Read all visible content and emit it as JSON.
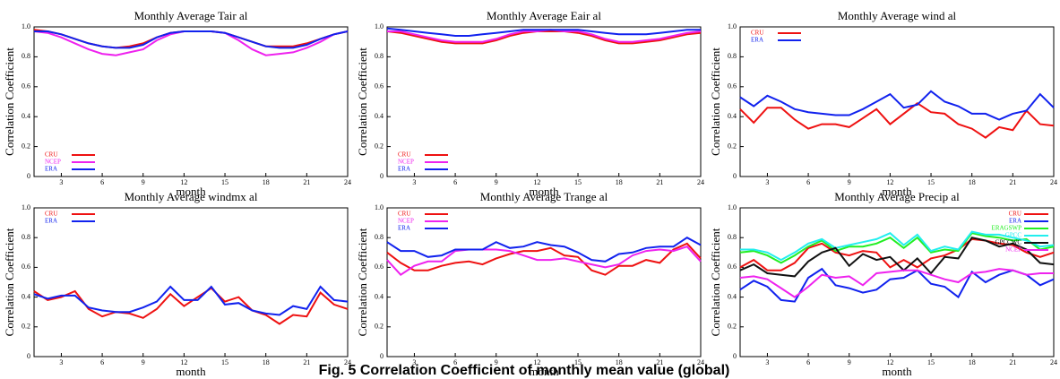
{
  "caption": "Fig. 5  Correlation Coefficient of monthly mean value (global)",
  "chart_data": [
    {
      "type": "line",
      "title": "Monthly Average Tair al",
      "xlabel": "month",
      "ylabel": "Correlation Coefficient",
      "legend": "lower left",
      "x": [
        1,
        2,
        3,
        4,
        5,
        6,
        7,
        8,
        9,
        10,
        11,
        12,
        13,
        14,
        15,
        16,
        17,
        18,
        19,
        20,
        21,
        22,
        23,
        24
      ],
      "xlim": [
        1,
        24
      ],
      "xticks": [
        3,
        6,
        9,
        12,
        15,
        18,
        21,
        24
      ],
      "ylim": [
        0,
        1
      ],
      "yticks": [
        0,
        0.2,
        0.4,
        0.6,
        0.8,
        {
          "value": 1,
          "label": "1.0"
        }
      ],
      "series": [
        {
          "name": "CRU",
          "color": "#ee1111",
          "values": [
            0.98,
            0.97,
            0.95,
            0.92,
            0.89,
            0.87,
            0.86,
            0.87,
            0.89,
            0.93,
            0.96,
            0.97,
            0.97,
            0.97,
            0.96,
            0.93,
            0.9,
            0.87,
            0.87,
            0.87,
            0.89,
            0.92,
            0.95,
            0.97
          ]
        },
        {
          "name": "NCEP",
          "color": "#ee22ee",
          "values": [
            0.97,
            0.96,
            0.93,
            0.89,
            0.85,
            0.82,
            0.81,
            0.83,
            0.85,
            0.91,
            0.95,
            0.97,
            0.97,
            0.97,
            0.96,
            0.91,
            0.85,
            0.81,
            0.82,
            0.83,
            0.86,
            0.9,
            0.95,
            0.97
          ]
        },
        {
          "name": "ERA",
          "color": "#1122ee",
          "values": [
            0.97,
            0.97,
            0.95,
            0.92,
            0.89,
            0.87,
            0.86,
            0.86,
            0.88,
            0.93,
            0.96,
            0.97,
            0.97,
            0.97,
            0.96,
            0.93,
            0.9,
            0.87,
            0.86,
            0.86,
            0.88,
            0.92,
            0.95,
            0.97
          ]
        }
      ]
    },
    {
      "type": "line",
      "title": "Monthly Average Eair al",
      "xlabel": "month",
      "ylabel": "Correlation Coefficient",
      "legend": "lower left",
      "x": [
        1,
        2,
        3,
        4,
        5,
        6,
        7,
        8,
        9,
        10,
        11,
        12,
        13,
        14,
        15,
        16,
        17,
        18,
        19,
        20,
        21,
        22,
        23,
        24
      ],
      "xlim": [
        1,
        24
      ],
      "xticks": [
        3,
        6,
        9,
        12,
        15,
        18,
        21,
        24
      ],
      "ylim": [
        0,
        1
      ],
      "yticks": [
        0,
        0.2,
        0.4,
        0.6,
        0.8,
        {
          "value": 1,
          "label": "1.0"
        }
      ],
      "series": [
        {
          "name": "CRU",
          "color": "#ee1111",
          "values": [
            0.97,
            0.96,
            0.94,
            0.92,
            0.9,
            0.89,
            0.89,
            0.89,
            0.91,
            0.94,
            0.96,
            0.97,
            0.97,
            0.97,
            0.96,
            0.94,
            0.91,
            0.89,
            0.89,
            0.9,
            0.91,
            0.93,
            0.95,
            0.96
          ]
        },
        {
          "name": "NCEP",
          "color": "#ee22ee",
          "values": [
            0.97,
            0.97,
            0.95,
            0.93,
            0.91,
            0.9,
            0.9,
            0.9,
            0.92,
            0.95,
            0.97,
            0.97,
            0.98,
            0.97,
            0.97,
            0.95,
            0.92,
            0.9,
            0.9,
            0.91,
            0.92,
            0.94,
            0.96,
            0.97
          ]
        },
        {
          "name": "ERA",
          "color": "#1122ee",
          "values": [
            0.99,
            0.98,
            0.97,
            0.96,
            0.95,
            0.94,
            0.94,
            0.95,
            0.96,
            0.97,
            0.98,
            0.98,
            0.98,
            0.98,
            0.98,
            0.97,
            0.96,
            0.95,
            0.95,
            0.95,
            0.96,
            0.97,
            0.98,
            0.98
          ]
        }
      ]
    },
    {
      "type": "line",
      "title": "Monthly Average wind al",
      "xlabel": "month",
      "ylabel": "Correlation Coefficient",
      "legend": "upper left",
      "x": [
        1,
        2,
        3,
        4,
        5,
        6,
        7,
        8,
        9,
        10,
        11,
        12,
        13,
        14,
        15,
        16,
        17,
        18,
        19,
        20,
        21,
        22,
        23,
        24
      ],
      "xlim": [
        1,
        24
      ],
      "xticks": [
        3,
        6,
        9,
        12,
        15,
        18,
        21,
        24
      ],
      "ylim": [
        0,
        1
      ],
      "yticks": [
        0,
        0.2,
        0.4,
        0.6,
        0.8,
        {
          "value": 1,
          "label": "1.0"
        }
      ],
      "series": [
        {
          "name": "CRU",
          "color": "#ee1111",
          "values": [
            0.45,
            0.36,
            0.46,
            0.46,
            0.38,
            0.32,
            0.35,
            0.35,
            0.33,
            0.39,
            0.45,
            0.35,
            0.42,
            0.49,
            0.43,
            0.42,
            0.35,
            0.32,
            0.26,
            0.33,
            0.31,
            0.44,
            0.35,
            0.34
          ]
        },
        {
          "name": "ERA",
          "color": "#1122ee",
          "values": [
            0.53,
            0.47,
            0.54,
            0.5,
            0.45,
            0.43,
            0.42,
            0.41,
            0.41,
            0.45,
            0.5,
            0.55,
            0.46,
            0.48,
            0.57,
            0.5,
            0.47,
            0.42,
            0.42,
            0.38,
            0.42,
            0.44,
            0.55,
            0.46
          ]
        }
      ]
    },
    {
      "type": "line",
      "title": "Monthly Average windmx al",
      "xlabel": "month",
      "ylabel": "Correlation Coefficient",
      "legend": "upper left",
      "x": [
        1,
        2,
        3,
        4,
        5,
        6,
        7,
        8,
        9,
        10,
        11,
        12,
        13,
        14,
        15,
        16,
        17,
        18,
        19,
        20,
        21,
        22,
        23,
        24
      ],
      "xlim": [
        1,
        24
      ],
      "xticks": [
        3,
        6,
        9,
        12,
        15,
        18,
        21,
        24
      ],
      "ylim": [
        0,
        1
      ],
      "yticks": [
        0,
        0.2,
        0.4,
        0.6,
        0.8,
        {
          "value": 1,
          "label": "1.0"
        }
      ],
      "series": [
        {
          "name": "CRU",
          "color": "#ee1111",
          "values": [
            0.44,
            0.38,
            0.4,
            0.44,
            0.32,
            0.27,
            0.3,
            0.29,
            0.26,
            0.32,
            0.42,
            0.34,
            0.4,
            0.46,
            0.37,
            0.4,
            0.31,
            0.28,
            0.22,
            0.28,
            0.27,
            0.43,
            0.35,
            0.32
          ]
        },
        {
          "name": "ERA",
          "color": "#1122ee",
          "values": [
            0.42,
            0.39,
            0.41,
            0.41,
            0.33,
            0.31,
            0.3,
            0.3,
            0.33,
            0.37,
            0.47,
            0.38,
            0.38,
            0.47,
            0.35,
            0.36,
            0.31,
            0.29,
            0.28,
            0.34,
            0.32,
            0.47,
            0.38,
            0.37
          ]
        }
      ]
    },
    {
      "type": "line",
      "title": "Monthly Average Trange al",
      "xlabel": "month",
      "ylabel": "Correlation Coefficient",
      "legend": "upper left",
      "x": [
        1,
        2,
        3,
        4,
        5,
        6,
        7,
        8,
        9,
        10,
        11,
        12,
        13,
        14,
        15,
        16,
        17,
        18,
        19,
        20,
        21,
        22,
        23,
        24
      ],
      "xlim": [
        1,
        24
      ],
      "xticks": [
        3,
        6,
        9,
        12,
        15,
        18,
        21,
        24
      ],
      "ylim": [
        0,
        1
      ],
      "yticks": [
        0,
        0.2,
        0.4,
        0.6,
        0.8,
        {
          "value": 1,
          "label": "1.0"
        }
      ],
      "series": [
        {
          "name": "CRU",
          "color": "#ee1111",
          "values": [
            0.7,
            0.63,
            0.58,
            0.58,
            0.61,
            0.63,
            0.64,
            0.62,
            0.66,
            0.69,
            0.71,
            0.71,
            0.73,
            0.68,
            0.67,
            0.58,
            0.55,
            0.61,
            0.61,
            0.65,
            0.63,
            0.72,
            0.76,
            0.66
          ]
        },
        {
          "name": "NCEP",
          "color": "#ee22ee",
          "values": [
            0.65,
            0.55,
            0.61,
            0.64,
            0.64,
            0.71,
            0.72,
            0.72,
            0.72,
            0.71,
            0.68,
            0.65,
            0.65,
            0.66,
            0.64,
            0.62,
            0.6,
            0.62,
            0.68,
            0.71,
            0.72,
            0.71,
            0.74,
            0.64
          ]
        },
        {
          "name": "ERA",
          "color": "#1122ee",
          "values": [
            0.77,
            0.71,
            0.71,
            0.67,
            0.68,
            0.72,
            0.72,
            0.72,
            0.77,
            0.73,
            0.74,
            0.77,
            0.75,
            0.74,
            0.7,
            0.65,
            0.64,
            0.69,
            0.7,
            0.73,
            0.74,
            0.74,
            0.8,
            0.75
          ]
        }
      ]
    },
    {
      "type": "line",
      "title": "Monthly Average Precip al",
      "xlabel": "month",
      "ylabel": "Correlation Coefficient",
      "legend": "upper right",
      "x": [
        1,
        2,
        3,
        4,
        5,
        6,
        7,
        8,
        9,
        10,
        11,
        12,
        13,
        14,
        15,
        16,
        17,
        18,
        19,
        20,
        21,
        22,
        23,
        24
      ],
      "xlim": [
        1,
        24
      ],
      "xticks": [
        3,
        6,
        9,
        12,
        15,
        18,
        21,
        24
      ],
      "ylim": [
        0,
        1
      ],
      "yticks": [
        0,
        0.2,
        0.4,
        0.6,
        0.8,
        {
          "value": 1,
          "label": "1.0"
        }
      ],
      "series": [
        {
          "name": "CRU",
          "color": "#ee1111",
          "values": [
            0.6,
            0.65,
            0.58,
            0.58,
            0.63,
            0.73,
            0.76,
            0.7,
            0.68,
            0.71,
            0.7,
            0.6,
            0.65,
            0.6,
            0.66,
            0.68,
            0.72,
            0.79,
            0.78,
            0.76,
            0.75,
            0.7,
            0.67,
            0.7
          ]
        },
        {
          "name": "ERA",
          "color": "#1122ee",
          "values": [
            0.45,
            0.51,
            0.47,
            0.38,
            0.37,
            0.53,
            0.59,
            0.48,
            0.46,
            0.43,
            0.45,
            0.52,
            0.53,
            0.58,
            0.49,
            0.47,
            0.4,
            0.57,
            0.5,
            0.55,
            0.58,
            0.55,
            0.48,
            0.52
          ]
        },
        {
          "name": "ERAGSWP",
          "color": "#22ee22",
          "values": [
            0.7,
            0.71,
            0.68,
            0.63,
            0.68,
            0.74,
            0.78,
            0.71,
            0.74,
            0.74,
            0.76,
            0.8,
            0.73,
            0.8,
            0.7,
            0.72,
            0.71,
            0.83,
            0.81,
            0.8,
            0.78,
            0.79,
            0.72,
            0.74
          ]
        },
        {
          "name": "GPCC",
          "color": "#22eeee",
          "values": [
            0.72,
            0.72,
            0.7,
            0.65,
            0.7,
            0.76,
            0.79,
            0.73,
            0.75,
            0.77,
            0.79,
            0.83,
            0.75,
            0.82,
            0.71,
            0.74,
            0.72,
            0.84,
            0.82,
            0.82,
            0.8,
            0.78,
            0.74,
            0.75
          ]
        },
        {
          "name": "GPCCWC",
          "color": "#111111",
          "values": [
            0.58,
            0.62,
            0.56,
            0.55,
            0.54,
            0.64,
            0.7,
            0.73,
            0.61,
            0.69,
            0.65,
            0.67,
            0.58,
            0.66,
            0.56,
            0.67,
            0.66,
            0.8,
            0.78,
            0.74,
            0.76,
            0.72,
            0.63,
            0.62
          ]
        },
        {
          "name": "NCEP",
          "color": "#ee22ee",
          "values": [
            0.53,
            0.54,
            0.52,
            0.46,
            0.4,
            0.47,
            0.55,
            0.53,
            0.54,
            0.48,
            0.56,
            0.57,
            0.58,
            0.58,
            0.55,
            0.52,
            0.5,
            0.56,
            0.57,
            0.59,
            0.58,
            0.55,
            0.56,
            0.56
          ]
        }
      ]
    }
  ]
}
